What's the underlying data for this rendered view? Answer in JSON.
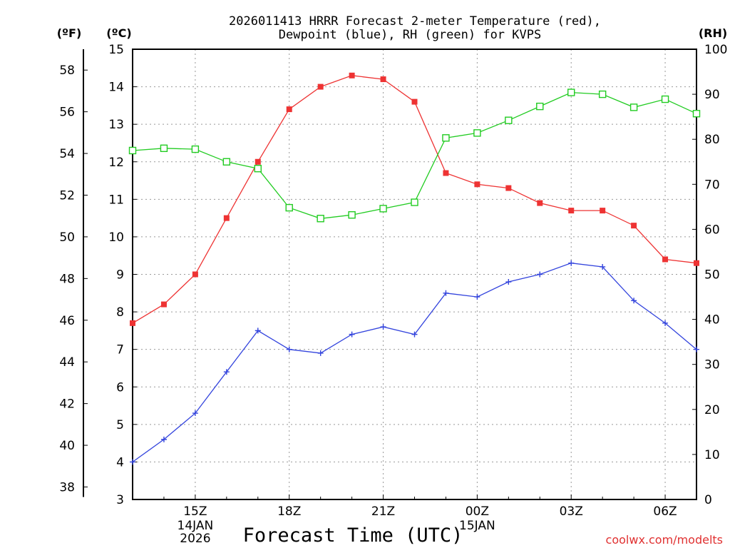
{
  "chart_data": {
    "type": "line",
    "title_line1": "2026011413 HRRR Forecast 2-meter Temperature (red),",
    "title_line2": "Dewpoint (blue), RH (green) for KVPS",
    "xlabel": "Forecast Time (UTC)",
    "watermark": "coolwx.com/modelts",
    "unit_f": "(ºF)",
    "unit_c": "(ºC)",
    "unit_rh": "(RH)",
    "x_hours": [
      13,
      14,
      15,
      16,
      17,
      18,
      19,
      20,
      21,
      22,
      23,
      24,
      25,
      26,
      27,
      28,
      29,
      30,
      31
    ],
    "x_ticks": [
      {
        "hour": 15,
        "label": "15Z",
        "date": "14JAN",
        "year": "2026"
      },
      {
        "hour": 18,
        "label": "18Z"
      },
      {
        "hour": 21,
        "label": "21Z"
      },
      {
        "hour": 24,
        "label": "00Z",
        "date": "15JAN"
      },
      {
        "hour": 27,
        "label": "03Z"
      },
      {
        "hour": 30,
        "label": "06Z"
      }
    ],
    "celsius_axis": {
      "min": 3,
      "max": 15,
      "ticks": [
        "3",
        "4",
        "5",
        "6",
        "7",
        "8",
        "9",
        "10",
        "11",
        "12",
        "13",
        "14",
        "15"
      ]
    },
    "fahrenheit_axis": {
      "ticks": [
        "38",
        "40",
        "42",
        "44",
        "46",
        "48",
        "50",
        "52",
        "54",
        "56",
        "58"
      ]
    },
    "rh_axis": {
      "min": 0,
      "max": 100,
      "ticks": [
        "0",
        "10",
        "20",
        "30",
        "40",
        "50",
        "60",
        "70",
        "80",
        "90",
        "100"
      ]
    },
    "colors": {
      "temperature": "#ee3333",
      "dewpoint": "#3344dd",
      "rh": "#22cc22"
    },
    "series": [
      {
        "name": "Temperature",
        "axis": "celsius",
        "marker": "filled-square",
        "values": [
          7.7,
          8.2,
          9.0,
          10.5,
          12.0,
          13.4,
          14.0,
          14.3,
          14.2,
          13.6,
          11.7,
          11.4,
          11.3,
          10.9,
          10.7,
          10.7,
          10.3,
          9.4,
          9.3
        ]
      },
      {
        "name": "Dewpoint",
        "axis": "celsius",
        "marker": "plus",
        "values": [
          4.0,
          4.6,
          5.3,
          6.4,
          7.5,
          7.0,
          6.9,
          7.4,
          7.6,
          7.4,
          8.5,
          8.4,
          8.8,
          9.0,
          9.3,
          9.2,
          8.3,
          7.7,
          7.0
        ]
      },
      {
        "name": "RH",
        "axis": "rh",
        "marker": "open-square",
        "values": [
          77.5,
          78.0,
          77.8,
          75.0,
          73.5,
          64.8,
          62.4,
          63.2,
          64.6,
          66.0,
          80.3,
          81.4,
          84.2,
          87.3,
          90.4,
          90.0,
          87.1,
          88.9,
          85.7
        ]
      }
    ]
  }
}
